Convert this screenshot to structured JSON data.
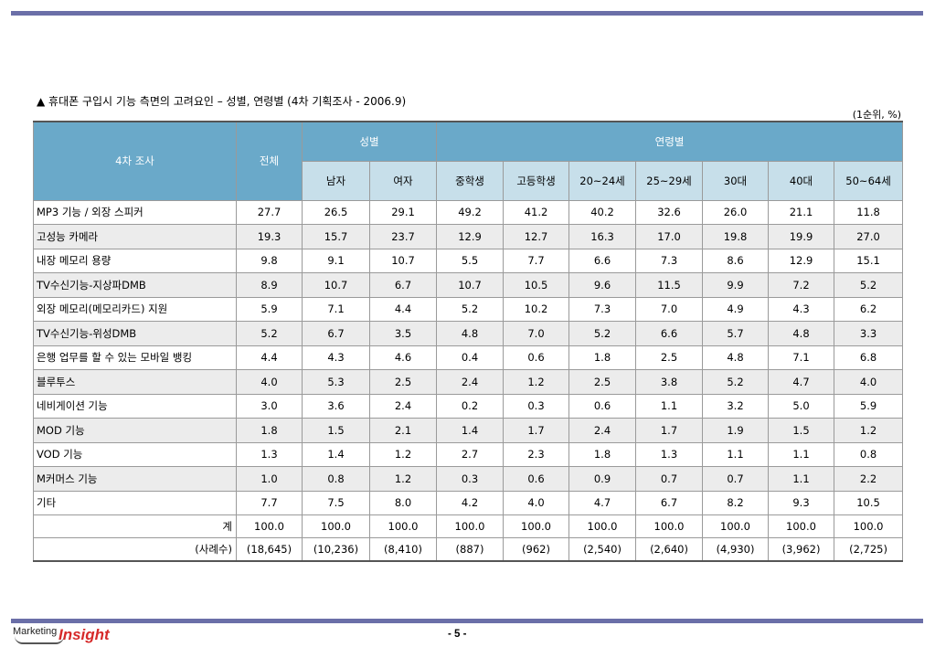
{
  "title": "▲ 휴대폰 구입시 기능 측면의 고려요인 – 성별, 연령별 (4차 기획조사 - 2006.9)",
  "unit": "(1순위, %)",
  "header": {
    "survey": "4차 조사",
    "total": "전체",
    "gender": "성별",
    "age": "연령별",
    "male": "남자",
    "female": "여자",
    "middle": "중학생",
    "high": "고등학생",
    "a20": "20~24세",
    "a25": "25~29세",
    "a30": "30대",
    "a40": "40대",
    "a50": "50~64세"
  },
  "rows": [
    {
      "label": "MP3 기능 / 외장 스피커",
      "v": [
        "27.7",
        "26.5",
        "29.1",
        "49.2",
        "41.2",
        "40.2",
        "32.6",
        "26.0",
        "21.1",
        "11.8"
      ]
    },
    {
      "label": "고성능 카메라",
      "v": [
        "19.3",
        "15.7",
        "23.7",
        "12.9",
        "12.7",
        "16.3",
        "17.0",
        "19.8",
        "19.9",
        "27.0"
      ]
    },
    {
      "label": "내장 메모리 용량",
      "v": [
        "9.8",
        "9.1",
        "10.7",
        "5.5",
        "7.7",
        "6.6",
        "7.3",
        "8.6",
        "12.9",
        "15.1"
      ]
    },
    {
      "label": "TV수신기능-지상파DMB",
      "v": [
        "8.9",
        "10.7",
        "6.7",
        "10.7",
        "10.5",
        "9.6",
        "11.5",
        "9.9",
        "7.2",
        "5.2"
      ]
    },
    {
      "label": "외장 메모리(메모리카드) 지원",
      "v": [
        "5.9",
        "7.1",
        "4.4",
        "5.2",
        "10.2",
        "7.3",
        "7.0",
        "4.9",
        "4.3",
        "6.2"
      ]
    },
    {
      "label": "TV수신기능-위성DMB",
      "v": [
        "5.2",
        "6.7",
        "3.5",
        "4.8",
        "7.0",
        "5.2",
        "6.6",
        "5.7",
        "4.8",
        "3.3"
      ]
    },
    {
      "label": "은행 업무를 할 수 있는 모바일 뱅킹",
      "v": [
        "4.4",
        "4.3",
        "4.6",
        "0.4",
        "0.6",
        "1.8",
        "2.5",
        "4.8",
        "7.1",
        "6.8"
      ]
    },
    {
      "label": "블루투스",
      "v": [
        "4.0",
        "5.3",
        "2.5",
        "2.4",
        "1.2",
        "2.5",
        "3.8",
        "5.2",
        "4.7",
        "4.0"
      ]
    },
    {
      "label": "네비게이션 기능",
      "v": [
        "3.0",
        "3.6",
        "2.4",
        "0.2",
        "0.3",
        "0.6",
        "1.1",
        "3.2",
        "5.0",
        "5.9"
      ]
    },
    {
      "label": "MOD 기능",
      "v": [
        "1.8",
        "1.5",
        "2.1",
        "1.4",
        "1.7",
        "2.4",
        "1.7",
        "1.9",
        "1.5",
        "1.2"
      ]
    },
    {
      "label": "VOD 기능",
      "v": [
        "1.3",
        "1.4",
        "1.2",
        "2.7",
        "2.3",
        "1.8",
        "1.3",
        "1.1",
        "1.1",
        "0.8"
      ]
    },
    {
      "label": "M커머스 기능",
      "v": [
        "1.0",
        "0.8",
        "1.2",
        "0.3",
        "0.6",
        "0.9",
        "0.7",
        "0.7",
        "1.1",
        "2.2"
      ]
    },
    {
      "label": "기타",
      "v": [
        "7.7",
        "7.5",
        "8.0",
        "4.2",
        "4.0",
        "4.7",
        "6.7",
        "8.2",
        "9.3",
        "10.5"
      ]
    }
  ],
  "total_row": {
    "label": "계",
    "v": [
      "100.0",
      "100.0",
      "100.0",
      "100.0",
      "100.0",
      "100.0",
      "100.0",
      "100.0",
      "100.0",
      "100.0"
    ]
  },
  "cases_row": {
    "label": "(사례수)",
    "v": [
      "(18,645)",
      "(10,236)",
      "(8,410)",
      "(887)",
      "(962)",
      "(2,540)",
      "(2,640)",
      "(4,930)",
      "(3,962)",
      "(2,725)"
    ]
  },
  "logo": {
    "marketing": "Marketing",
    "insight": "Insight"
  },
  "page": "- 5 -"
}
